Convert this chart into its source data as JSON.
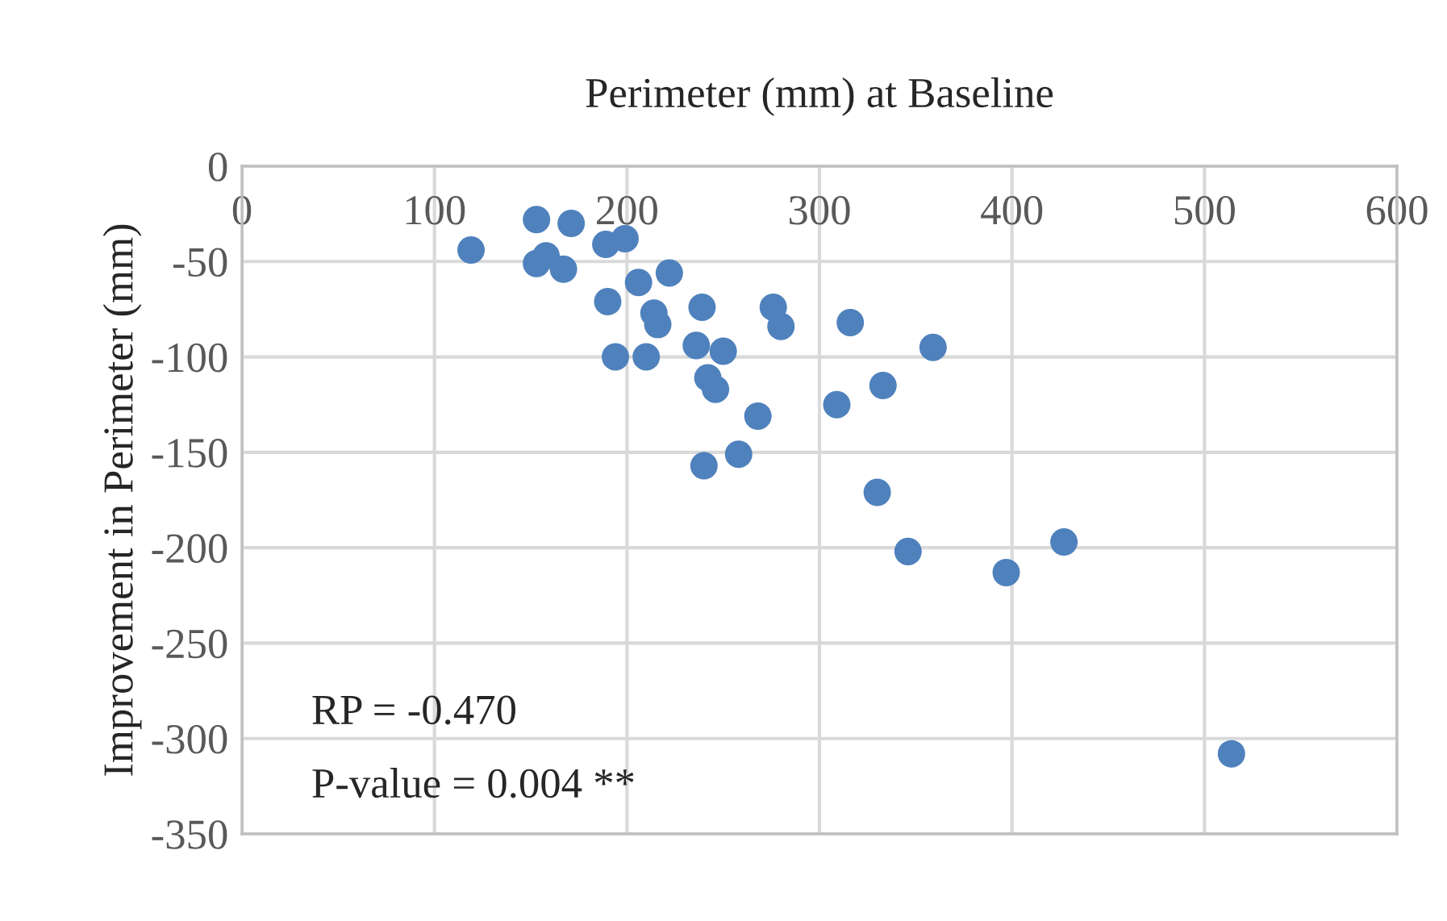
{
  "chart_data": {
    "type": "scatter",
    "title": "Perimeter (mm) at Baseline",
    "ylabel": "Improvement in Perimeter (mm)",
    "x": [
      119,
      153,
      171,
      153,
      158,
      167,
      190,
      189,
      199,
      194,
      210,
      206,
      222,
      214,
      216,
      239,
      236,
      250,
      242,
      246,
      268,
      240,
      258,
      276,
      280,
      316,
      359,
      309,
      333,
      330,
      346,
      397,
      427,
      514
    ],
    "series": [
      {
        "color": "#4f81bd",
        "values": [
          -44,
          -28,
          -30,
          -51,
          -47,
          -54,
          -71,
          -41,
          -38,
          -100,
          -100,
          -61,
          -56,
          -77,
          -83,
          -74,
          -94,
          -97,
          -111,
          -117,
          -131,
          -157,
          -151,
          -74,
          -84,
          -82,
          -95,
          -125,
          -115,
          -171,
          -202,
          -213,
          -197,
          -308
        ]
      }
    ],
    "xlim": [
      0,
      600
    ],
    "xticks": [
      0,
      100,
      200,
      300,
      400,
      500,
      600
    ],
    "ylim": [
      -350,
      0
    ],
    "yticks": [
      -350,
      -300,
      -250,
      -200,
      -150,
      -100,
      -50,
      0
    ],
    "grid": true,
    "marker": "circle",
    "legend": false,
    "annotations": [
      "RP = -0.470",
      "P-value = 0.004 **"
    ]
  }
}
